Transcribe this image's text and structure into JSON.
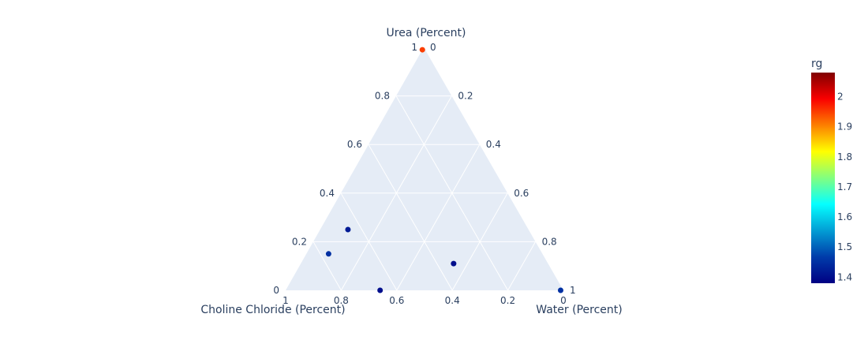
{
  "chart_data": {
    "type": "scatter",
    "subtype": "ternary",
    "title": "",
    "axes": {
      "a": {
        "title": "Urea (Percent)",
        "ticks": [
          "1",
          "0.8",
          "0.6",
          "0.4",
          "0.2",
          "0"
        ]
      },
      "b": {
        "title": "Choline Chloride (Percent)",
        "ticks": [
          "1",
          "0.8",
          "0.6",
          "0.4",
          "0.2",
          "0"
        ]
      },
      "c": {
        "title": "Water (Percent)",
        "ticks": [
          "1",
          "0.8",
          "0.6",
          "0.4",
          "0.2",
          "0"
        ]
      }
    },
    "grid": true,
    "background_color": "#e5ecf6",
    "points": [
      {
        "a": 0.99,
        "b": 0.01,
        "c": 0.0,
        "rg": 1.95
      },
      {
        "a": 0.25,
        "b": 0.65,
        "c": 0.1,
        "rg": 1.42
      },
      {
        "a": 0.15,
        "b": 0.77,
        "c": 0.08,
        "rg": 1.45
      },
      {
        "a": 0.11,
        "b": 0.34,
        "c": 0.55,
        "rg": 1.4
      },
      {
        "a": 0.0,
        "b": 0.66,
        "c": 0.34,
        "rg": 1.4
      },
      {
        "a": 0.0,
        "b": 0.01,
        "c": 0.99,
        "rg": 1.45
      }
    ],
    "colorbar": {
      "title": "rg",
      "range": [
        1.38,
        2.08
      ],
      "ticks": [
        1.4,
        1.5,
        1.6,
        1.7,
        1.8,
        1.9,
        2
      ],
      "colorscale": "jet",
      "legend_position": "right"
    }
  }
}
